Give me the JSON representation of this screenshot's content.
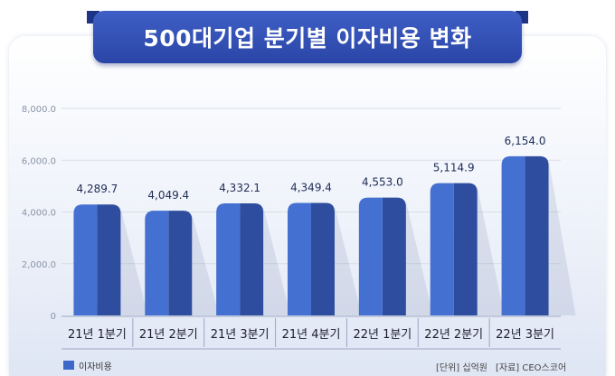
{
  "title": "500대기업 분기별 이자비용 변화",
  "legend_label": "이자비용",
  "unit_note": "[단위] 십억원",
  "source_note": "[자료] CEO스코어",
  "colors": {
    "bar_front": "#4470d1",
    "bar_side": "#2e4d9e",
    "bar_top": "#3a60bd",
    "grid": "#d7dde8",
    "tick_text": "#8a93a6",
    "label_text": "#1e2c56",
    "banner": "#2f4db0"
  },
  "chart_data": {
    "type": "bar",
    "title": "500대기업 분기별 이자비용 변화",
    "categories": [
      "21년 1분기",
      "21년 2분기",
      "21년 3분기",
      "21년 4분기",
      "22년 1분기",
      "22년 2분기",
      "22년 3분기"
    ],
    "series": [
      {
        "name": "이자비용",
        "values": [
          4289.7,
          4049.4,
          4332.1,
          4349.4,
          4553.0,
          5114.9,
          6154.0
        ],
        "labels": [
          "4,289.7",
          "4,049.4",
          "4,332.1",
          "4,349.4",
          "4,553.0",
          "5,114.9",
          "6,154.0"
        ]
      }
    ],
    "yticks": [
      0,
      2000,
      4000,
      6000,
      8000
    ],
    "ytick_labels": [
      "0",
      "2,000.0",
      "4,000.0",
      "6,000.0",
      "8,000.0"
    ],
    "ylim": [
      0,
      8000
    ],
    "grid": true,
    "legend": "bottom-left"
  }
}
